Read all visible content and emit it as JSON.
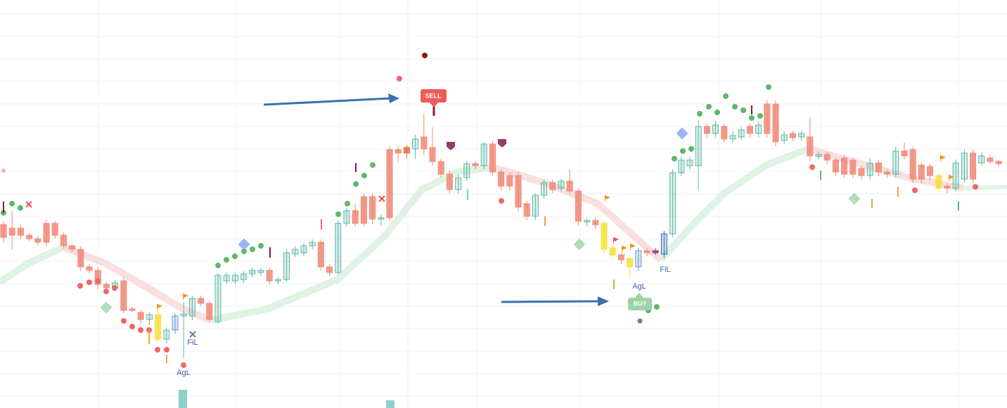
{
  "chart_data": {
    "type": "candlestick",
    "ylim": [
      0,
      581
    ],
    "annotations": [
      "SELL",
      "BUY",
      "AgL",
      "FiL",
      "FiL",
      "AgL"
    ],
    "ohlc": [
      [
        261,
        266,
        236,
        243
      ],
      [
        256,
        281,
        226,
        246
      ],
      [
        256,
        262,
        240,
        246
      ],
      [
        246,
        250,
        238,
        241
      ],
      [
        241,
        245,
        232,
        236
      ],
      [
        263,
        268,
        230,
        236
      ],
      [
        263,
        266,
        242,
        246
      ],
      [
        246,
        250,
        227,
        231
      ],
      [
        231,
        234,
        222,
        226
      ],
      [
        226,
        230,
        195,
        201
      ],
      [
        201,
        205,
        192,
        196
      ],
      [
        196,
        200,
        170,
        176
      ],
      [
        176,
        180,
        166,
        171
      ],
      [
        171,
        183,
        166,
        178
      ],
      [
        181,
        186,
        135,
        139
      ],
      [
        141,
        144,
        136,
        139
      ],
      [
        136,
        140,
        120,
        126
      ],
      [
        126,
        137,
        118,
        133
      ],
      [
        133,
        137,
        95,
        98
      ],
      [
        98,
        115,
        92,
        111
      ],
      [
        111,
        135,
        105,
        131
      ],
      [
        131,
        151,
        71,
        134
      ],
      [
        131,
        160,
        125,
        156
      ],
      [
        156,
        160,
        145,
        149
      ],
      [
        149,
        152,
        122,
        126
      ],
      [
        123,
        192,
        120,
        189
      ],
      [
        181,
        193,
        176,
        189
      ],
      [
        181,
        193,
        176,
        189
      ],
      [
        183,
        195,
        178,
        191
      ],
      [
        191,
        200,
        186,
        196
      ],
      [
        193,
        200,
        188,
        196
      ],
      [
        196,
        200,
        176,
        181
      ],
      [
        181,
        186,
        176,
        183
      ],
      [
        183,
        226,
        180,
        221
      ],
      [
        219,
        230,
        215,
        226
      ],
      [
        221,
        235,
        217,
        231
      ],
      [
        231,
        240,
        226,
        236
      ],
      [
        236,
        240,
        196,
        201
      ],
      [
        201,
        205,
        188,
        193
      ],
      [
        193,
        267,
        190,
        263
      ],
      [
        263,
        285,
        258,
        281
      ],
      [
        281,
        290,
        258,
        263
      ],
      [
        301,
        306,
        258,
        263
      ],
      [
        301,
        306,
        262,
        269
      ],
      [
        269,
        275,
        260,
        271
      ],
      [
        368,
        372,
        266,
        271
      ],
      [
        368,
        373,
        350,
        363
      ],
      [
        371,
        375,
        355,
        363
      ],
      [
        369,
        389,
        355,
        383
      ],
      [
        386,
        420,
        360,
        369
      ],
      [
        371,
        400,
        345,
        351
      ],
      [
        351,
        355,
        328,
        333
      ],
      [
        333,
        338,
        305,
        311
      ],
      [
        311,
        332,
        305,
        328
      ],
      [
        328,
        352,
        323,
        348
      ],
      [
        348,
        352,
        340,
        345
      ],
      [
        345,
        378,
        340,
        376
      ],
      [
        376,
        380,
        330,
        336
      ],
      [
        336,
        340,
        310,
        316
      ],
      [
        331,
        336,
        310,
        316
      ],
      [
        331,
        336,
        280,
        286
      ],
      [
        291,
        295,
        268,
        273
      ],
      [
        273,
        306,
        268,
        303
      ],
      [
        303,
        325,
        298,
        321
      ],
      [
        321,
        325,
        306,
        311
      ],
      [
        313,
        326,
        308,
        323
      ],
      [
        323,
        340,
        305,
        309
      ],
      [
        309,
        313,
        260,
        266
      ],
      [
        265,
        270,
        258,
        267
      ],
      [
        267,
        272,
        255,
        261
      ],
      [
        263,
        267,
        220,
        226
      ],
      [
        228,
        232,
        212,
        218
      ],
      [
        218,
        222,
        205,
        211
      ],
      [
        213,
        217,
        185,
        201
      ],
      [
        201,
        228,
        195,
        224
      ],
      [
        224,
        228,
        216,
        221
      ],
      [
        224,
        228,
        218,
        221
      ],
      [
        219,
        252,
        214,
        248
      ],
      [
        248,
        340,
        243,
        335
      ],
      [
        335,
        358,
        330,
        353
      ],
      [
        345,
        358,
        340,
        353
      ],
      [
        345,
        410,
        310,
        401
      ],
      [
        401,
        405,
        385,
        391
      ],
      [
        391,
        408,
        385,
        403
      ],
      [
        401,
        405,
        378,
        383
      ],
      [
        383,
        395,
        378,
        388
      ],
      [
        386,
        400,
        381,
        396
      ],
      [
        401,
        405,
        385,
        391
      ],
      [
        391,
        408,
        385,
        403
      ],
      [
        433,
        438,
        385,
        391
      ],
      [
        433,
        438,
        373,
        379
      ],
      [
        381,
        394,
        376,
        389
      ],
      [
        391,
        395,
        380,
        385
      ],
      [
        386,
        395,
        381,
        391
      ],
      [
        386,
        414,
        352,
        359
      ],
      [
        358,
        365,
        354,
        361
      ],
      [
        361,
        365,
        347,
        353
      ],
      [
        353,
        357,
        330,
        336
      ],
      [
        356,
        360,
        328,
        333
      ],
      [
        353,
        357,
        327,
        333
      ],
      [
        341,
        345,
        325,
        331
      ],
      [
        331,
        355,
        325,
        349
      ],
      [
        349,
        353,
        330,
        336
      ],
      [
        336,
        340,
        328,
        333
      ],
      [
        333,
        372,
        328,
        366
      ],
      [
        366,
        378,
        354,
        359
      ],
      [
        368,
        372,
        320,
        326
      ],
      [
        346,
        350,
        320,
        326
      ],
      [
        344,
        348,
        325,
        331
      ],
      [
        331,
        335,
        308,
        313
      ],
      [
        316,
        320,
        306,
        313
      ],
      [
        313,
        354,
        308,
        349
      ],
      [
        326,
        368,
        320,
        363
      ],
      [
        363,
        368,
        320,
        326
      ],
      [
        349,
        364,
        345,
        359
      ],
      [
        356,
        360,
        348,
        351
      ],
      [
        351,
        354,
        344,
        348
      ]
    ],
    "colors": [
      "#f08a78",
      "#f08a78",
      "#f08a78",
      "#f08a78",
      "#f08a78",
      "#f08a78",
      "#f08a78",
      "#f08a78",
      "#f08a78",
      "#f08a78",
      "#f08a78",
      "#f08a78",
      "#f08a78",
      "#5fb8a8",
      "#f08a78",
      "#f08a78",
      "#f08a78",
      "#5fb8a8",
      "#f5e03a",
      "#5fb8a8",
      "#6a96d8",
      "#5fb8a8",
      "#5fb8a8",
      "#f08a78",
      "#f08a78",
      "#5fb8a8",
      "#5fb8a8",
      "#5fb8a8",
      "#5fb8a8",
      "#5fb8a8",
      "#5fb8a8",
      "#f08a78",
      "#5fb8a8",
      "#5fb8a8",
      "#5fb8a8",
      "#5fb8a8",
      "#5fb8a8",
      "#f08a78",
      "#f08a78",
      "#5fb8a8",
      "#5fb8a8",
      "#f08a78",
      "#f08a78",
      "#f08a78",
      "#5fb8a8",
      "#f08a78",
      "#f08a78",
      "#e8703e",
      "#5fb8a8",
      "#f08a78",
      "#f08a78",
      "#f08a78",
      "#f08a78",
      "#5fb8a8",
      "#5fb8a8",
      "#f08a78",
      "#5fb8a8",
      "#f08a78",
      "#f08a78",
      "#f08a78",
      "#f08a78",
      "#f08a78",
      "#5fb8a8",
      "#5fb8a8",
      "#f08a78",
      "#5fb8a8",
      "#f08a78",
      "#f08a78",
      "#5fb8a8",
      "#f08a78",
      "#f5e03a",
      "#f5e03a",
      "#f08a78",
      "#f5e03a",
      "#6a96d8",
      "#f08a78",
      "#8a3d8f",
      "#2f6db5",
      "#5fb8a8",
      "#5fb8a8",
      "#5fb8a8",
      "#5fb8a8",
      "#f08a78",
      "#5fb8a8",
      "#f08a78",
      "#5fb8a8",
      "#5fb8a8",
      "#f08a78",
      "#5fb8a8",
      "#f08a78",
      "#f08a78",
      "#5fb8a8",
      "#f08a78",
      "#5fb8a8",
      "#f08a78",
      "#5fb8a8",
      "#f08a78",
      "#f08a78",
      "#f08a78",
      "#f08a78",
      "#f08a78",
      "#5fb8a8",
      "#f08a78",
      "#f08a78",
      "#5fb8a8",
      "#f08a78",
      "#f08a78",
      "#f08a78",
      "#f08a78",
      "#f5e03a",
      "#f08a78",
      "#5fb8a8",
      "#5fb8a8",
      "#f08a78",
      "#5fb8a8",
      "#f08a78",
      "#f08a78"
    ]
  }
}
